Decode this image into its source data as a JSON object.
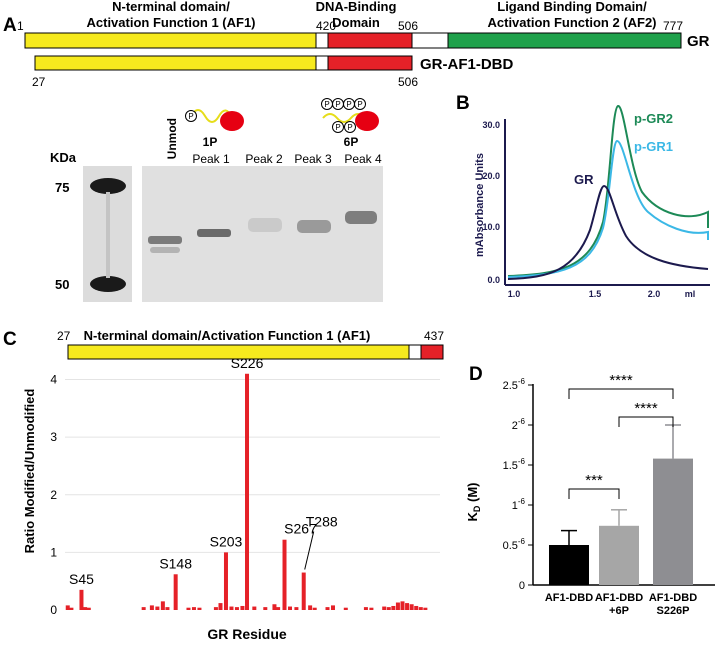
{
  "panel_labels": {
    "a": "A",
    "b": "B",
    "c": "C",
    "d": "D"
  },
  "panel_a": {
    "domains": {
      "af1": {
        "line1": "N-terminal domain/",
        "line2": "Activation Function 1 (AF1)"
      },
      "dbd": {
        "line1": "DNA-Binding",
        "line2": "Domain"
      },
      "lbd": {
        "line1": "Ligand Binding Domain/",
        "line2": "Activation Function 2 (AF2)"
      }
    },
    "residue_markers": {
      "start": "1",
      "dbd_start": "420",
      "dbd_end": "506",
      "end": "777"
    },
    "gr_label": "GR",
    "construct_label": "GR-AF1-DBD",
    "construct_markers": {
      "start": "27",
      "end": "506"
    },
    "colors": {
      "af1": "#f6ea1e",
      "dbd": "#e52128",
      "linker": "#ffffff",
      "lbd": "#1fa14b"
    },
    "gel": {
      "kda_label": "KDa",
      "markers": [
        "75",
        "50"
      ],
      "lane_unmod": "Unmod",
      "lanes": [
        "Peak 1",
        "Peak 2",
        "Peak 3",
        "Peak 4"
      ],
      "phospho_symbol": "P",
      "diagram_1p": "1P",
      "diagram_6p": "6P"
    }
  },
  "panel_b": {
    "ylabel": "mAbsorbance Units",
    "xunit": "ml",
    "yticks": [
      "30.0",
      "20.0",
      "10.0",
      "0.0"
    ],
    "xticks": [
      "1.0",
      "1.5",
      "2.0"
    ],
    "series_labels": {
      "pgr2": "p-GR2",
      "pgr1": "p-GR1",
      "gr": "GR"
    },
    "colors": {
      "pgr2": "#1d8a57",
      "pgr1": "#3bb8e6",
      "gr": "#1c1a4e"
    }
  },
  "panel_c": {
    "domain_label": "N-terminal domain/Activation Function 1 (AF1)",
    "marker_start": "27",
    "marker_end": "437",
    "chart_data": {
      "type": "bar",
      "title": "",
      "xlabel": "GR Residue",
      "ylabel": "Ratio Modified/Unmodified",
      "ylim": [
        0,
        4.2
      ],
      "yticks": [
        "4",
        "3",
        "2",
        "1",
        "0"
      ],
      "x_range": [
        27,
        437
      ],
      "bar_color": "#e52128",
      "bars": [
        {
          "x": 30,
          "value": 0.08
        },
        {
          "x": 34,
          "value": 0.04
        },
        {
          "x": 45,
          "value": 0.35
        },
        {
          "x": 49,
          "value": 0.05
        },
        {
          "x": 53,
          "value": 0.04
        },
        {
          "x": 113,
          "value": 0.05
        },
        {
          "x": 122,
          "value": 0.08
        },
        {
          "x": 128,
          "value": 0.06
        },
        {
          "x": 134,
          "value": 0.15
        },
        {
          "x": 139,
          "value": 0.05
        },
        {
          "x": 148,
          "value": 0.62
        },
        {
          "x": 162,
          "value": 0.04
        },
        {
          "x": 168,
          "value": 0.05
        },
        {
          "x": 174,
          "value": 0.04
        },
        {
          "x": 192,
          "value": 0.05
        },
        {
          "x": 197,
          "value": 0.12
        },
        {
          "x": 203,
          "value": 1.0
        },
        {
          "x": 209,
          "value": 0.06
        },
        {
          "x": 215,
          "value": 0.05
        },
        {
          "x": 221,
          "value": 0.07
        },
        {
          "x": 226,
          "value": 4.1
        },
        {
          "x": 234,
          "value": 0.06
        },
        {
          "x": 246,
          "value": 0.05
        },
        {
          "x": 256,
          "value": 0.1
        },
        {
          "x": 260,
          "value": 0.05
        },
        {
          "x": 267,
          "value": 1.22
        },
        {
          "x": 273,
          "value": 0.06
        },
        {
          "x": 280,
          "value": 0.05
        },
        {
          "x": 288,
          "value": 0.65
        },
        {
          "x": 295,
          "value": 0.08
        },
        {
          "x": 300,
          "value": 0.04
        },
        {
          "x": 314,
          "value": 0.05
        },
        {
          "x": 320,
          "value": 0.08
        },
        {
          "x": 334,
          "value": 0.04
        },
        {
          "x": 356,
          "value": 0.05
        },
        {
          "x": 362,
          "value": 0.04
        },
        {
          "x": 376,
          "value": 0.06
        },
        {
          "x": 381,
          "value": 0.05
        },
        {
          "x": 386,
          "value": 0.07
        },
        {
          "x": 391,
          "value": 0.13
        },
        {
          "x": 396,
          "value": 0.15
        },
        {
          "x": 401,
          "value": 0.12
        },
        {
          "x": 406,
          "value": 0.1
        },
        {
          "x": 411,
          "value": 0.07
        },
        {
          "x": 416,
          "value": 0.05
        },
        {
          "x": 421,
          "value": 0.04
        }
      ],
      "annotations": [
        {
          "text": "S45",
          "x": 45
        },
        {
          "text": "S148",
          "x": 148
        },
        {
          "text": "S203",
          "x": 203
        },
        {
          "text": "S226",
          "x": 226
        },
        {
          "text": "T288",
          "x": 288
        },
        {
          "text": "S267",
          "x": 267
        }
      ]
    }
  },
  "panel_d": {
    "chart_data": {
      "type": "bar",
      "title": "",
      "xlabel": "",
      "ylabel_base": "K",
      "ylabel_sub": "D",
      "ylabel_unit": " (M)",
      "ylim": [
        0,
        2.5e-06
      ],
      "yticks": [
        {
          "value": 0,
          "mantissa": "0",
          "exp": ""
        },
        {
          "value": 5e-07,
          "mantissa": "0.5",
          "exp": "-6"
        },
        {
          "value": 1e-06,
          "mantissa": "1",
          "exp": "-6"
        },
        {
          "value": 1.5e-06,
          "mantissa": "1.5",
          "exp": "-6"
        },
        {
          "value": 2e-06,
          "mantissa": "2",
          "exp": "-6"
        },
        {
          "value": 2.5e-06,
          "mantissa": "2.5",
          "exp": "-6"
        }
      ],
      "bars": [
        {
          "label1": "AF1-DBD",
          "label2": "",
          "value": 5e-07,
          "error": 1.8e-07,
          "color": "#000000"
        },
        {
          "label1": "AF1-DBD",
          "label2": "+6P",
          "value": 7.4e-07,
          "error": 2e-07,
          "color": "#a6a6a6"
        },
        {
          "label1": "AF1-DBD",
          "label2": "S226P",
          "value": 1.58e-06,
          "error": 4.2e-07,
          "color": "#8e8e92"
        }
      ],
      "significance": [
        {
          "from": 0,
          "to": 1,
          "label": "***",
          "y": 1.2e-06
        },
        {
          "from": 1,
          "to": 2,
          "label": "****",
          "y": 2.1e-06
        },
        {
          "from": 0,
          "to": 2,
          "label": "****",
          "y": 2.45e-06
        }
      ]
    }
  }
}
